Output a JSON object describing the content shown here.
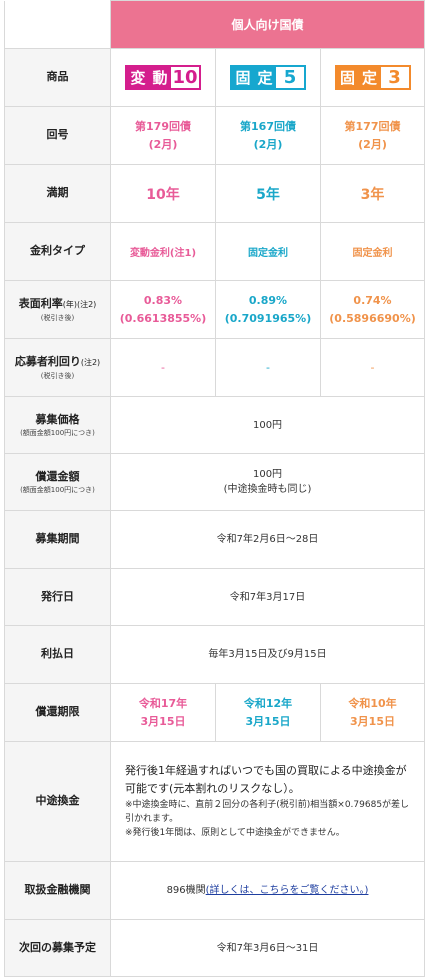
{
  "header": {
    "title": "個人向け国債"
  },
  "rows": {
    "product": {
      "label": "商品"
    },
    "issue_no": {
      "label": "回号",
      "values": [
        {
          "line1": "第179回債",
          "line2": "(2月)"
        },
        {
          "line1": "第167回債",
          "line2": "(2月)"
        },
        {
          "line1": "第177回債",
          "line2": "(2月)"
        }
      ]
    },
    "maturity": {
      "label": "満期",
      "values": [
        "10年",
        "5年",
        "3年"
      ]
    },
    "rate_type": {
      "label": "金利タイプ",
      "values": [
        "変動金利(注1)",
        "固定金利",
        "固定金利"
      ]
    },
    "coupon": {
      "label": "表面利率",
      "label_unit": "(年)",
      "label_note": "(注2)",
      "label_sub": "(税引き後)",
      "values": [
        {
          "line1": "0.83%",
          "line2": "(0.6613855%)"
        },
        {
          "line1": "0.89%",
          "line2": "(0.7091965%)"
        },
        {
          "line1": "0.74%",
          "line2": "(0.5896690%)"
        }
      ]
    },
    "yield": {
      "label": "応募者利回り",
      "label_note": "(注2)",
      "label_sub": "(税引き後)",
      "values": [
        "-",
        "-",
        "-"
      ]
    },
    "price": {
      "label": "募集価格",
      "label_sub": "(額面金額100円につき)",
      "value": "100円"
    },
    "redemption": {
      "label": "償還金額",
      "label_sub": "(額面金額100円につき)",
      "value": "100円",
      "value_sub": "(中途換金時も同じ)"
    },
    "period": {
      "label": "募集期間",
      "value": "令和7年2月6日～28日"
    },
    "issue_date": {
      "label": "発行日",
      "value": "令和7年3月17日"
    },
    "interest": {
      "label": "利払日",
      "value": "毎年3月15日及び9月15日"
    },
    "maturity_date": {
      "label": "償還期限",
      "values": [
        {
          "line1": "令和17年",
          "line2": "3月15日"
        },
        {
          "line1": "令和12年",
          "line2": "3月15日"
        },
        {
          "line1": "令和10年",
          "line2": "3月15日"
        }
      ]
    },
    "midterm": {
      "label": "中途換金",
      "main": "発行後1年経過すればいつでも国の買取による中途換金が可能です(元本割れのリスクなし）。",
      "sub1": "※中途換金時に、直前２回分の各利子(税引前)相当額×0.79685が差し引かれます。",
      "sub2": "※発行後1年間は、原則として中途換金ができません。"
    },
    "institutions": {
      "label": "取扱金融機関",
      "count": "896機関",
      "link": "(詳しくは、こちらをご覧ください。)"
    },
    "next": {
      "label": "次回の募集予定",
      "value": "令和7年3月6日～31日"
    }
  },
  "logos": [
    {
      "chars": [
        "変",
        "動"
      ],
      "num": "10"
    },
    {
      "chars": [
        "固",
        "定"
      ],
      "num": "5"
    },
    {
      "chars": [
        "固",
        "定"
      ],
      "num": "3"
    }
  ],
  "colors": {
    "header": "#ec7391",
    "variable10": "#e85b98",
    "fixed5": "#1aa7c9",
    "fixed3": "#f0934b"
  }
}
